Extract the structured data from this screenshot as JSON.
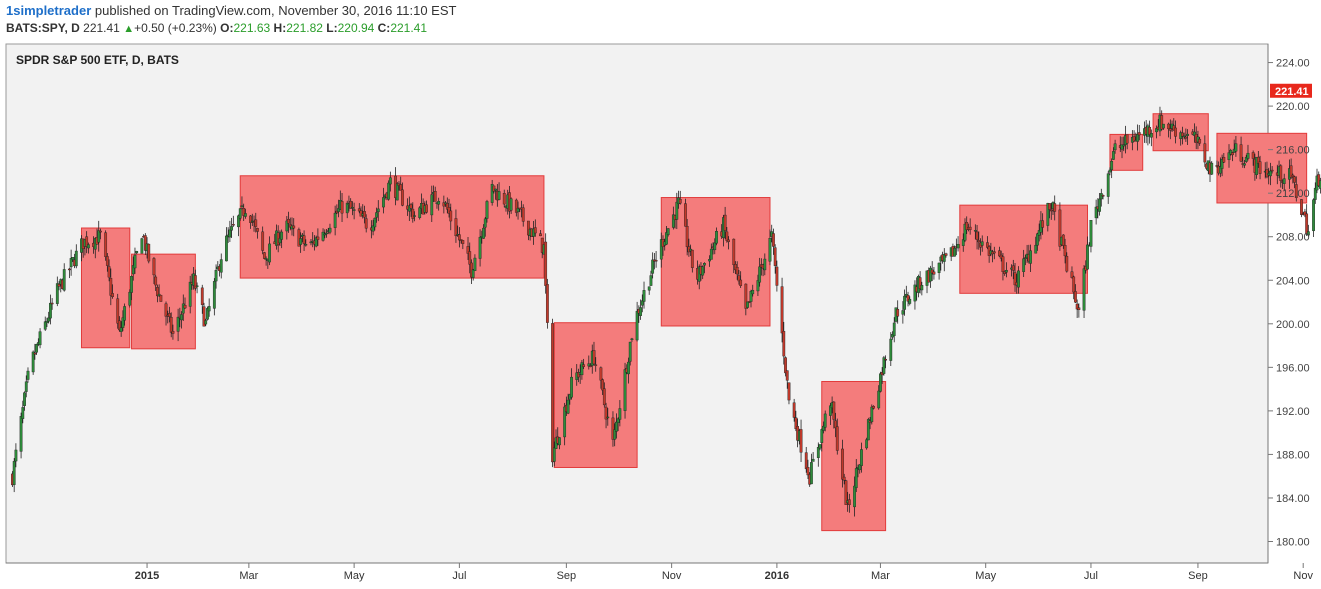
{
  "header": {
    "author": "1simpletrader",
    "published_text": " published on TradingView.com, November 30, 2016 11:10 EST",
    "symbol": "BATS:SPY, D",
    "last": "221.41",
    "change": "+0.50 (+0.23%)",
    "o_label": "O:",
    "o_value": "221.63",
    "h_label": "H:",
    "h_value": "221.82",
    "l_label": "L:",
    "l_value": "220.94",
    "c_label": "C:",
    "c_value": "221.41"
  },
  "colors": {
    "up": "#2e8b3a",
    "down": "#c0392b",
    "box_fill": "#f47c7c",
    "box_stroke": "#e23b3b",
    "last_price_bg": "#e8281c",
    "plot_bg": "#f2f2f2"
  },
  "chart_data": {
    "type": "candlestick",
    "title": "SPDR S&P 500 ETF, D, BATS",
    "ylim": [
      178,
      226
    ],
    "y_ticks": [
      "224.00",
      "220.00",
      "216.00",
      "212.00",
      "208.00",
      "204.00",
      "200.00",
      "196.00",
      "192.00",
      "188.00",
      "184.00",
      "180.00"
    ],
    "x_ticks": [
      {
        "label": "2015",
        "bold": true,
        "date": "2015-01"
      },
      {
        "label": "Mar",
        "bold": false,
        "date": "2015-03"
      },
      {
        "label": "May",
        "bold": false,
        "date": "2015-05"
      },
      {
        "label": "Jul",
        "bold": false,
        "date": "2015-07"
      },
      {
        "label": "Sep",
        "bold": false,
        "date": "2015-09"
      },
      {
        "label": "Nov",
        "bold": false,
        "date": "2015-11"
      },
      {
        "label": "2016",
        "bold": true,
        "date": "2016-01"
      },
      {
        "label": "Mar",
        "bold": false,
        "date": "2016-03"
      },
      {
        "label": "May",
        "bold": false,
        "date": "2016-05"
      },
      {
        "label": "Jul",
        "bold": false,
        "date": "2016-07"
      },
      {
        "label": "Sep",
        "bold": false,
        "date": "2016-09"
      },
      {
        "label": "Nov",
        "bold": false,
        "date": "2016-11"
      }
    ],
    "last_price": "221.41",
    "price_path": [
      [
        "2014-10-15",
        186
      ],
      [
        "2014-10-25",
        196
      ],
      [
        "2014-11-10",
        203
      ],
      [
        "2014-11-25",
        207.5
      ],
      [
        "2014-12-05",
        208
      ],
      [
        "2014-12-16",
        199
      ],
      [
        "2014-12-29",
        208.5
      ],
      [
        "2015-01-05",
        204
      ],
      [
        "2015-01-16",
        199
      ],
      [
        "2015-01-28",
        204
      ],
      [
        "2015-02-04",
        200
      ],
      [
        "2015-02-14",
        207
      ],
      [
        "2015-02-28",
        211
      ],
      [
        "2015-03-10",
        206
      ],
      [
        "2015-03-22",
        209
      ],
      [
        "2015-04-05",
        207
      ],
      [
        "2015-04-25",
        211
      ],
      [
        "2015-05-10",
        209
      ],
      [
        "2015-05-22",
        213
      ],
      [
        "2015-06-05",
        210
      ],
      [
        "2015-06-20",
        212
      ],
      [
        "2015-07-08",
        205
      ],
      [
        "2015-07-20",
        212.5
      ],
      [
        "2015-08-05",
        210
      ],
      [
        "2015-08-19",
        207
      ],
      [
        "2015-08-24",
        188
      ],
      [
        "2015-09-05",
        195
      ],
      [
        "2015-09-17",
        197
      ],
      [
        "2015-09-28",
        189
      ],
      [
        "2015-10-10",
        200
      ],
      [
        "2015-10-25",
        207
      ],
      [
        "2015-11-05",
        211
      ],
      [
        "2015-11-15",
        204
      ],
      [
        "2015-12-01",
        209
      ],
      [
        "2015-12-14",
        201
      ],
      [
        "2015-12-29",
        208
      ],
      [
        "2016-01-08",
        193
      ],
      [
        "2016-01-20",
        186
      ],
      [
        "2016-02-01",
        193
      ],
      [
        "2016-02-11",
        183
      ],
      [
        "2016-02-25",
        192
      ],
      [
        "2016-03-10",
        201
      ],
      [
        "2016-03-25",
        204
      ],
      [
        "2016-04-10",
        206
      ],
      [
        "2016-04-20",
        209
      ],
      [
        "2016-05-01",
        207
      ],
      [
        "2016-05-19",
        204
      ],
      [
        "2016-06-08",
        211
      ],
      [
        "2016-06-24",
        201
      ],
      [
        "2016-07-01",
        209
      ],
      [
        "2016-07-15",
        216
      ],
      [
        "2016-07-25",
        217
      ],
      [
        "2016-08-10",
        218.5
      ],
      [
        "2016-08-30",
        217
      ],
      [
        "2016-09-09",
        214
      ],
      [
        "2016-09-22",
        216
      ],
      [
        "2016-10-10",
        214
      ],
      [
        "2016-10-25",
        213.5
      ],
      [
        "2016-11-04",
        208.5
      ],
      [
        "2016-11-09",
        213
      ],
      [
        "2016-11-30",
        221.4
      ]
    ],
    "range_boxes": [
      {
        "start": "2014-11-24",
        "end": "2014-12-22",
        "top": 208.8,
        "bottom": 197.8
      },
      {
        "start": "2014-12-23",
        "end": "2015-01-29",
        "top": 206.4,
        "bottom": 197.7
      },
      {
        "start": "2015-02-24",
        "end": "2015-08-19",
        "top": 213.6,
        "bottom": 204.2
      },
      {
        "start": "2015-08-25",
        "end": "2015-10-12",
        "top": 200.1,
        "bottom": 186.8
      },
      {
        "start": "2015-10-26",
        "end": "2015-12-28",
        "top": 211.6,
        "bottom": 199.8
      },
      {
        "start": "2016-01-27",
        "end": "2016-03-04",
        "top": 194.7,
        "bottom": 181.0
      },
      {
        "start": "2016-04-16",
        "end": "2016-06-29",
        "top": 210.9,
        "bottom": 202.8
      },
      {
        "start": "2016-07-12",
        "end": "2016-07-31",
        "top": 217.4,
        "bottom": 214.1
      },
      {
        "start": "2016-08-06",
        "end": "2016-09-07",
        "top": 219.3,
        "bottom": 215.9
      },
      {
        "start": "2016-09-12",
        "end": "2016-11-03",
        "top": 217.5,
        "bottom": 211.1
      }
    ]
  }
}
